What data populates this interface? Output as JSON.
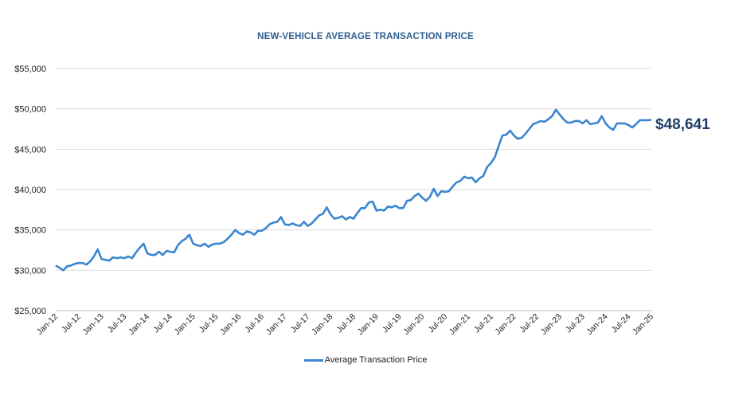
{
  "chart_data": {
    "type": "line",
    "title": "NEW-VEHICLE AVERAGE TRANSACTION PRICE",
    "xlabel": "",
    "ylabel": "",
    "ylim": [
      25000,
      55000
    ],
    "yticks": [
      "$25,000",
      "$30,000",
      "$35,000",
      "$40,000",
      "$45,000",
      "$50,000",
      "$55,000"
    ],
    "ytick_values": [
      25000,
      30000,
      35000,
      40000,
      45000,
      50000,
      55000
    ],
    "xticks": [
      "Jan-12",
      "Jul-12",
      "Jan-13",
      "Jul-13",
      "Jan-14",
      "Jul-14",
      "Jan-15",
      "Jul-15",
      "Jan-16",
      "Jul-16",
      "Jan-17",
      "Jul-17",
      "Jan-18",
      "Jul-18",
      "Jan-19",
      "Jul-19",
      "Jan-20",
      "Jul-20",
      "Jan-21",
      "Jul-21",
      "Jan-22",
      "Jul-22",
      "Jan-23",
      "Jul-23",
      "Jan-24",
      "Jul-24",
      "Jan-25"
    ],
    "grid": true,
    "legend_position": "bottom",
    "end_label": "$48,641",
    "series": [
      {
        "name": "Average Transaction Price",
        "color": "#3a86cf",
        "values": [
          30600,
          30300,
          30000,
          30500,
          30600,
          30800,
          30900,
          30900,
          30700,
          31100,
          31700,
          32600,
          31400,
          31300,
          31200,
          31600,
          31500,
          31600,
          31500,
          31700,
          31500,
          32200,
          32800,
          33300,
          32100,
          31900,
          31900,
          32300,
          31900,
          32400,
          32300,
          32200,
          33100,
          33600,
          33900,
          34400,
          33300,
          33100,
          33000,
          33300,
          32900,
          33200,
          33300,
          33300,
          33500,
          33900,
          34400,
          35000,
          34600,
          34400,
          34800,
          34700,
          34400,
          34900,
          34900,
          35200,
          35700,
          35900,
          36000,
          36600,
          35700,
          35600,
          35800,
          35600,
          35500,
          36000,
          35500,
          35800,
          36300,
          36800,
          37000,
          37800,
          36900,
          36400,
          36500,
          36700,
          36300,
          36600,
          36400,
          37100,
          37700,
          37700,
          38400,
          38500,
          37400,
          37500,
          37400,
          37900,
          37800,
          38000,
          37700,
          37700,
          38600,
          38700,
          39200,
          39500,
          39000,
          38600,
          39100,
          40100,
          39200,
          39800,
          39700,
          39800,
          40400,
          40900,
          41100,
          41600,
          41400,
          41500,
          40900,
          41400,
          41700,
          42800,
          43300,
          44000,
          45400,
          46700,
          46800,
          47300,
          46700,
          46300,
          46400,
          46900,
          47500,
          48100,
          48300,
          48500,
          48400,
          48700,
          49100,
          49900,
          49300,
          48700,
          48300,
          48300,
          48500,
          48500,
          48200,
          48600,
          48100,
          48200,
          48300,
          49100,
          48200,
          47700,
          47400,
          48200,
          48200,
          48200,
          48000,
          47700,
          48100,
          48600,
          48600,
          48600,
          48641
        ]
      }
    ]
  }
}
